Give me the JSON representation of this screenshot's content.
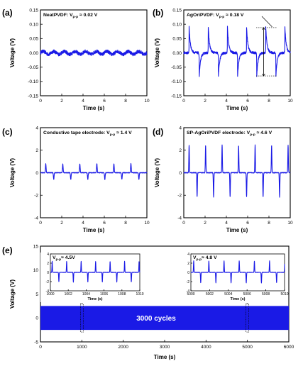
{
  "colors": {
    "signal": "#1a1ae6",
    "axis": "#000000",
    "annotation_text": "#000000",
    "cycles_text": "#ffffff"
  },
  "chart_data": [
    {
      "id": "a",
      "type": "line",
      "panel_label": "(a)",
      "annotation_prefix": "NeatPVDF: V",
      "annotation_sub": "p-p",
      "annotation_suffix": " ≈ 0.02 V",
      "xlabel": "Time (s)",
      "ylabel": "Voltage (V)",
      "xlim": [
        0,
        10
      ],
      "ylim": [
        -0.15,
        0.15
      ],
      "xticks": [
        "0",
        "2",
        "4",
        "6",
        "8",
        "10"
      ],
      "yticks": [
        "-0.15",
        "-0.10",
        "-0.05",
        "0.00",
        "0.05",
        "0.10",
        "0.15"
      ],
      "signal": {
        "kind": "noise",
        "period": 1.0,
        "amplitude": 0.005,
        "noise": 0.006,
        "offset": 0.0
      }
    },
    {
      "id": "b",
      "type": "line",
      "panel_label": "(b)",
      "annotation_prefix": "AgOriPVDF: V",
      "annotation_sub": "p-p",
      "annotation_suffix": " ≈ 0.18 V",
      "xlabel": "Time (s)",
      "ylabel": "Voltage (V)",
      "xlim": [
        0,
        10
      ],
      "ylim": [
        -0.15,
        0.15
      ],
      "xticks": [
        "0",
        "2",
        "4",
        "6",
        "8",
        "10"
      ],
      "yticks": [
        "-0.15",
        "-0.10",
        "-0.05",
        "0.00",
        "0.05",
        "0.10",
        "0.15"
      ],
      "signal": {
        "kind": "spiky",
        "first_peak": 0.5,
        "period": 1.8,
        "peak": 0.09,
        "trough": -0.085,
        "trough_delay": 0.95,
        "decay": 0.12,
        "noise": 0.004
      }
    },
    {
      "id": "c",
      "type": "line",
      "panel_label": "(c)",
      "annotation_prefix": "Conductive tape electrode: V",
      "annotation_sub": "p-p",
      "annotation_suffix": " ≈ 1.4 V",
      "xlabel": "Time (s)",
      "ylabel": "Voltage (V)",
      "xlim": [
        0,
        10
      ],
      "ylim": [
        -4,
        4
      ],
      "xticks": [
        "0",
        "2",
        "4",
        "6",
        "8",
        "10"
      ],
      "yticks": [
        "-4",
        "-2",
        "0",
        "2",
        "4"
      ],
      "signal": {
        "kind": "pulse",
        "first_peak": 0.5,
        "period": 1.6,
        "peak": 0.8,
        "trough": -0.6,
        "trough_delay": 0.75,
        "width": 0.03,
        "noise": 0.03
      }
    },
    {
      "id": "d",
      "type": "line",
      "panel_label": "(d)",
      "annotation_prefix": "SP-AgOriPVDF electrode: V",
      "annotation_sub": "p-p",
      "annotation_suffix": " ≈ 4.6 V",
      "xlabel": "Time (s)",
      "ylabel": "Voltage (V)",
      "xlim": [
        0,
        10
      ],
      "ylim": [
        -4,
        4
      ],
      "xticks": [
        "0",
        "2",
        "4",
        "6",
        "8",
        "10"
      ],
      "yticks": [
        "-4",
        "-2",
        "0",
        "2",
        "4"
      ],
      "signal": {
        "kind": "pulse",
        "first_peak": 0.5,
        "period": 1.55,
        "peak": 2.45,
        "trough": -2.15,
        "trough_delay": 0.75,
        "width": 0.025,
        "noise": 0.03
      }
    },
    {
      "id": "e",
      "type": "area",
      "panel_label": "(e)",
      "xlabel": "Time (s)",
      "ylabel": "Voltage (V)",
      "xlim": [
        0,
        6000
      ],
      "ylim": [
        -5,
        15
      ],
      "xticks": [
        "0",
        "1000",
        "2000",
        "3000",
        "4000",
        "5000",
        "6000"
      ],
      "yticks": [
        "-5",
        "0",
        "5",
        "10",
        "15"
      ],
      "band": {
        "x_start": 0,
        "x_end": 6000,
        "upper": 2.5,
        "lower": -2.5
      },
      "band_label": "3000 cycles",
      "insets": [
        {
          "annotation_prefix": "V",
          "annotation_sub": "p-p",
          "annotation_suffix": "≈ 4.5V",
          "xlabel": "Time (s)",
          "ylabel": "",
          "xlim": [
            1000,
            1010
          ],
          "ylim": [
            -4,
            4
          ],
          "xticks": [
            "1000",
            "1002",
            "1004",
            "1006",
            "1008",
            "1010"
          ],
          "yticks": [
            "-4",
            "-2",
            "0",
            "2",
            "4"
          ],
          "zoom_marker_x": 1000,
          "signal": {
            "kind": "pulse",
            "first_peak": 0.2,
            "period": 1.62,
            "peak": 2.4,
            "trough": -2.1,
            "trough_delay": 0.75,
            "width": 0.025,
            "noise": 0.03
          }
        },
        {
          "annotation_prefix": "V",
          "annotation_sub": "p-p",
          "annotation_suffix": "≈ 4.8 V",
          "xlabel": "Time (s)",
          "ylabel": "",
          "xlim": [
            5000,
            5010
          ],
          "ylim": [
            -4,
            4
          ],
          "xticks": [
            "5000",
            "5002",
            "5004",
            "5006",
            "5008",
            "5010"
          ],
          "yticks": [
            "-4",
            "-2",
            "0",
            "2",
            "4"
          ],
          "zoom_marker_x": 5000,
          "signal": {
            "kind": "pulse",
            "first_peak": 0.3,
            "period": 1.62,
            "peak": 2.5,
            "trough": -2.3,
            "trough_delay": 0.75,
            "width": 0.025,
            "noise": 0.03
          }
        }
      ]
    }
  ]
}
